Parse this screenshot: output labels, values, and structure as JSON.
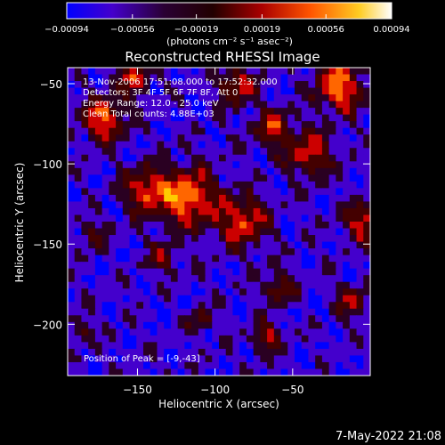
{
  "chart_data": {
    "type": "heatmap",
    "title": "Reconstructed RHESSI Image",
    "xlabel": "Heliocentric X (arcsec)",
    "ylabel": "Heliocentric Y (arcsec)",
    "xlim": [
      -195,
      0
    ],
    "ylim": [
      -232,
      -40
    ],
    "x_ticks": [
      -150,
      -100,
      -50
    ],
    "x_tick_labels": [
      "−150",
      "−100",
      "−50"
    ],
    "y_ticks": [
      -50,
      -100,
      -150,
      -200
    ],
    "y_tick_labels": [
      "−50",
      "−100",
      "−150",
      "−200"
    ],
    "colorbar": {
      "min": -0.00094,
      "max": 0.00094,
      "ticks": [
        -0.00094,
        -0.00056,
        -0.00019,
        0.00019,
        0.00056,
        0.00094
      ],
      "tick_labels": [
        "−0.00094",
        "−0.00056",
        "−0.00019",
        "0.00019",
        "0.00056",
        "0.00094"
      ],
      "unit_label": "(photons cm⁻² s⁻¹ asec⁻²)",
      "colors": [
        "#0000ff",
        "#4400cc",
        "#2a0022",
        "#440000",
        "#cc0000",
        "#ff6600",
        "#ffcc00",
        "#ffffff"
      ]
    },
    "annotations": [
      "13-Nov-2006 17:51:08.000 to 17:52:32.000",
      "Detectors: 3F 4F 5F 6F 7F 8F, Att 0",
      "Energy Range: 12.0 - 25.0 keV",
      "Clean    Total counts: 4.88E+03"
    ],
    "peak_label": "Position of Peak = [-9,-43]",
    "peak_position": [
      -9,
      -43
    ],
    "grid": false
  },
  "footer": {
    "timestamp": "7-May-2022 21:08"
  }
}
